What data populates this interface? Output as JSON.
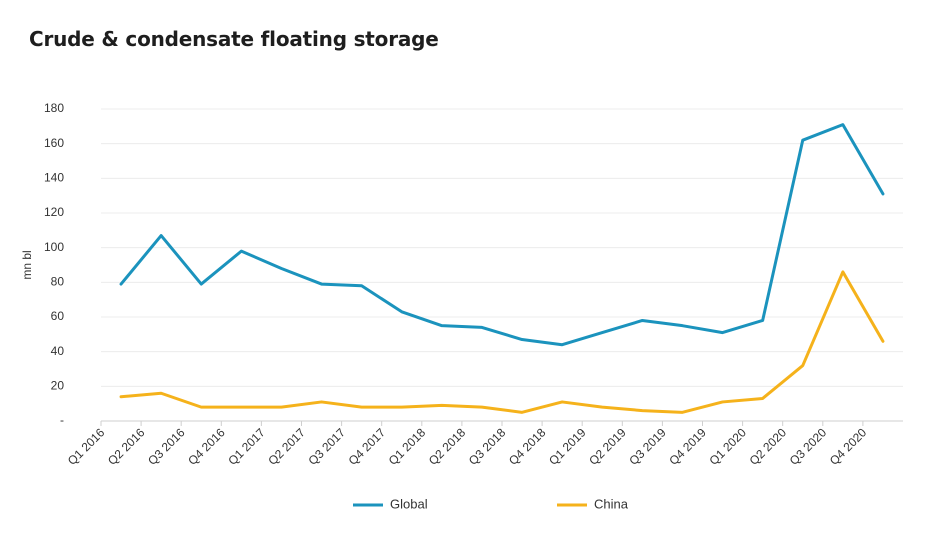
{
  "title": "Crude & condensate floating storage",
  "chart_data": {
    "type": "line",
    "title": "Crude & condensate floating storage",
    "ylabel": "mn bl",
    "xlabel": "",
    "ylim": [
      0,
      180
    ],
    "y_ticks": [
      "-",
      "20",
      "40",
      "60",
      "80",
      "100",
      "120",
      "140",
      "160",
      "180"
    ],
    "y_tick_values": [
      0,
      20,
      40,
      60,
      80,
      100,
      120,
      140,
      160,
      180
    ],
    "categories": [
      "Q1 2016",
      "Q2 2016",
      "Q3 2016",
      "Q4 2016",
      "Q1 2017",
      "Q2 2017",
      "Q3 2017",
      "Q4 2017",
      "Q1 2018",
      "Q2 2018",
      "Q3 2018",
      "Q4 2018",
      "Q1 2019",
      "Q2 2019",
      "Q3 2019",
      "Q4 2019",
      "Q1 2020",
      "Q2 2020",
      "Q3 2020",
      "Q4 2020"
    ],
    "x": [
      0.5,
      1.5,
      2.5,
      3.5,
      4.5,
      5.5,
      6.5,
      7.5,
      8.5,
      9.5,
      10.5,
      11.5,
      12.5,
      13.5,
      14.5,
      15.5,
      16.5,
      17.5,
      18.5,
      19.5
    ],
    "series": [
      {
        "name": "Global",
        "color": "#1b93bd",
        "values": [
          79,
          107,
          79,
          98,
          88,
          79,
          78,
          63,
          55,
          54,
          47,
          44,
          51,
          58,
          55,
          51,
          58,
          162,
          171,
          131
        ]
      },
      {
        "name": "China",
        "color": "#f5b21b",
        "values": [
          14,
          16,
          8,
          8,
          8,
          11,
          8,
          8,
          9,
          8,
          5,
          11,
          8,
          6,
          5,
          11,
          13,
          32,
          86,
          46
        ]
      }
    ],
    "grid": true,
    "legend_position": "bottom-center"
  }
}
